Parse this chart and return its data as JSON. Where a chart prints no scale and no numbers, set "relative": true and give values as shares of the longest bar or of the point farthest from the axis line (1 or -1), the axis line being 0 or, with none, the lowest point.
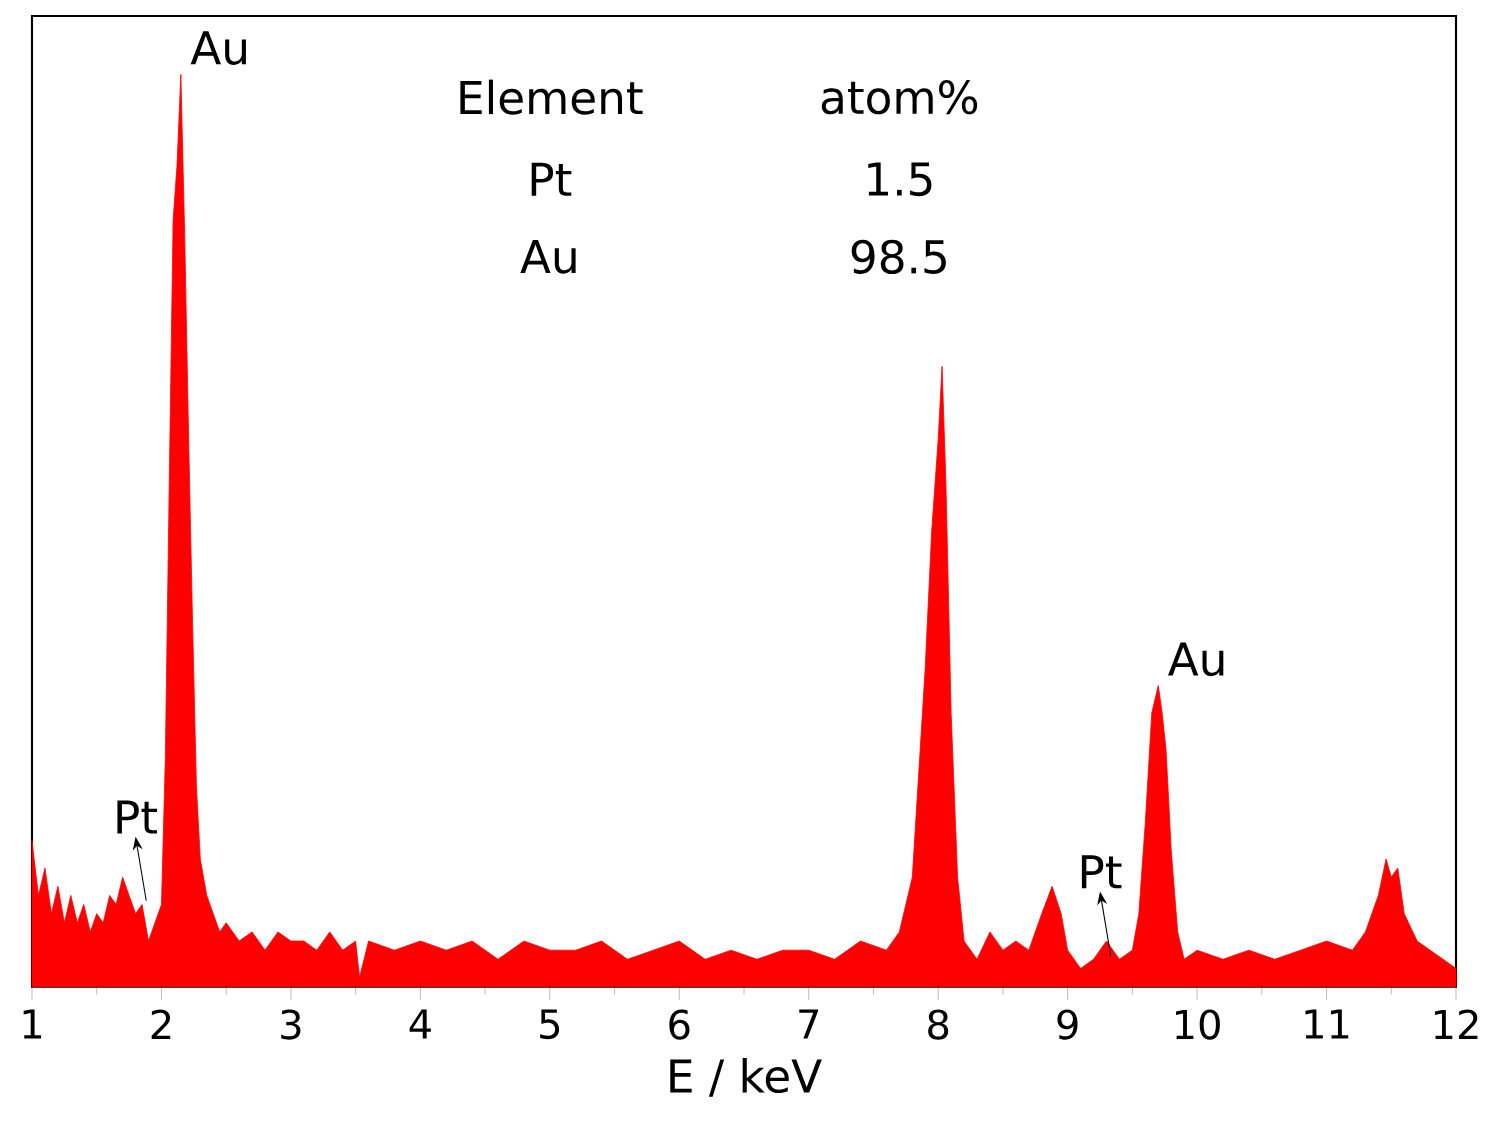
{
  "chart_data": {
    "type": "area",
    "relative": true,
    "xlabel": "E / keV",
    "xlim": [
      1,
      12
    ],
    "xticks": [
      1,
      2,
      3,
      4,
      5,
      6,
      7,
      8,
      9,
      10,
      11,
      12
    ],
    "series": [
      {
        "color": "#ff0000",
        "x": [
          1.0,
          1.05,
          1.1,
          1.15,
          1.2,
          1.25,
          1.3,
          1.35,
          1.4,
          1.45,
          1.5,
          1.55,
          1.6,
          1.65,
          1.7,
          1.75,
          1.8,
          1.85,
          1.9,
          1.95,
          2.0,
          2.03,
          2.06,
          2.09,
          2.12,
          2.15,
          2.18,
          2.21,
          2.24,
          2.27,
          2.3,
          2.35,
          2.4,
          2.45,
          2.5,
          2.6,
          2.7,
          2.8,
          2.9,
          3.0,
          3.1,
          3.2,
          3.3,
          3.4,
          3.5,
          3.53,
          3.6,
          3.8,
          4.0,
          4.2,
          4.4,
          4.6,
          4.8,
          5.0,
          5.2,
          5.4,
          5.6,
          5.8,
          6.0,
          6.2,
          6.4,
          6.6,
          6.8,
          7.0,
          7.2,
          7.4,
          7.6,
          7.7,
          7.8,
          7.9,
          7.95,
          8.0,
          8.03,
          8.06,
          8.1,
          8.15,
          8.2,
          8.3,
          8.4,
          8.5,
          8.6,
          8.7,
          8.8,
          8.88,
          8.95,
          9.0,
          9.1,
          9.2,
          9.3,
          9.4,
          9.5,
          9.55,
          9.6,
          9.65,
          9.7,
          9.73,
          9.76,
          9.8,
          9.85,
          9.9,
          10.0,
          10.2,
          10.4,
          10.6,
          10.8,
          11.0,
          11.2,
          11.3,
          11.4,
          11.46,
          11.5,
          11.55,
          11.6,
          11.7,
          11.8,
          11.9,
          12.0
        ],
        "values": [
          0.16,
          0.1,
          0.13,
          0.08,
          0.11,
          0.07,
          0.1,
          0.07,
          0.09,
          0.06,
          0.08,
          0.07,
          0.1,
          0.09,
          0.12,
          0.1,
          0.08,
          0.09,
          0.05,
          0.07,
          0.09,
          0.25,
          0.55,
          0.84,
          0.9,
          1.0,
          0.82,
          0.6,
          0.4,
          0.22,
          0.14,
          0.1,
          0.08,
          0.06,
          0.07,
          0.05,
          0.06,
          0.04,
          0.06,
          0.05,
          0.05,
          0.04,
          0.06,
          0.04,
          0.05,
          0.01,
          0.05,
          0.04,
          0.05,
          0.04,
          0.05,
          0.03,
          0.05,
          0.04,
          0.04,
          0.05,
          0.03,
          0.04,
          0.05,
          0.03,
          0.04,
          0.03,
          0.04,
          0.04,
          0.03,
          0.05,
          0.04,
          0.06,
          0.12,
          0.35,
          0.5,
          0.6,
          0.68,
          0.55,
          0.3,
          0.12,
          0.05,
          0.03,
          0.06,
          0.04,
          0.05,
          0.04,
          0.08,
          0.11,
          0.08,
          0.04,
          0.02,
          0.03,
          0.05,
          0.03,
          0.04,
          0.08,
          0.18,
          0.3,
          0.33,
          0.3,
          0.26,
          0.15,
          0.06,
          0.03,
          0.04,
          0.03,
          0.04,
          0.03,
          0.04,
          0.05,
          0.04,
          0.06,
          0.1,
          0.14,
          0.12,
          0.13,
          0.08,
          0.05,
          0.04,
          0.03,
          0.02
        ]
      }
    ],
    "annotations": [
      {
        "text": "Au",
        "x": 2.15,
        "y": 1.0
      },
      {
        "text": "Pt",
        "x": 1.8,
        "y": 0.1
      },
      {
        "text": "Au",
        "x": 9.7,
        "y": 0.33
      },
      {
        "text": "Pt",
        "x": 9.25,
        "y": 0.04
      },
      "Element",
      "atom%",
      "Pt",
      "1.5",
      "Au",
      "98.5"
    ]
  }
}
